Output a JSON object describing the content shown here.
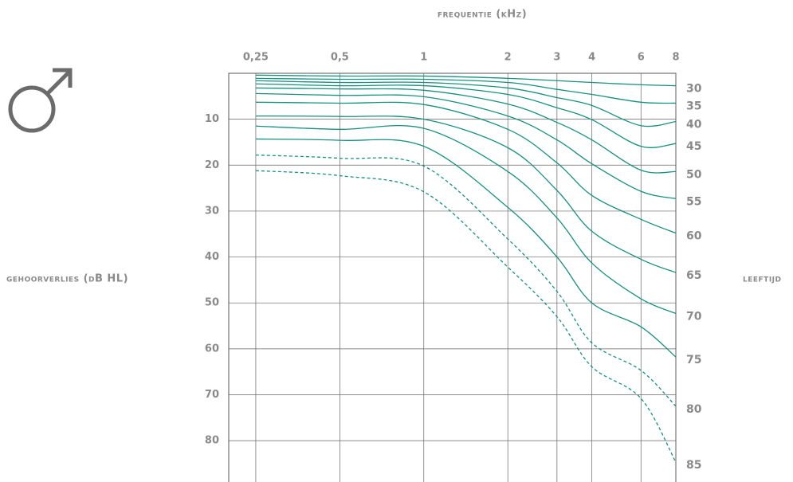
{
  "chart_data": {
    "type": "line",
    "title": "frequentie (kHz)",
    "y_label": "gehoorverlies (dB HL)",
    "series_label": "leeftijd",
    "x_scale": "log",
    "y_inverted": true,
    "grid": true,
    "x": [
      0.25,
      0.5,
      1,
      2,
      3,
      4,
      6,
      8
    ],
    "xlim": [
      0.2,
      8
    ],
    "xticks": [
      {
        "value": 0.25,
        "label": "0,25"
      },
      {
        "value": 0.5,
        "label": "0,5"
      },
      1,
      2,
      3,
      4,
      6,
      8
    ],
    "ylim": [
      0,
      89
    ],
    "yticks": [
      10,
      20,
      30,
      40,
      50,
      60,
      70,
      80
    ],
    "series": [
      {
        "name": "30",
        "color": "#16917f",
        "dashed": false,
        "values": [
          0.4,
          0.6,
          0.6,
          1.1,
          1.6,
          2,
          2.5,
          2.7
        ]
      },
      {
        "name": "35",
        "color": "#16917f",
        "dashed": false,
        "values": [
          1.1,
          1.3,
          1.3,
          2,
          3.5,
          4.6,
          6.3,
          6.5
        ]
      },
      {
        "name": "40",
        "color": "#16917f",
        "dashed": false,
        "values": [
          1.6,
          2,
          2,
          3.2,
          5.3,
          7,
          11.4,
          10.5
        ]
      },
      {
        "name": "45",
        "color": "#16917f",
        "dashed": false,
        "values": [
          2.3,
          2.7,
          2.7,
          4.6,
          7.5,
          10.1,
          15.9,
          15.3
        ]
      },
      {
        "name": "50",
        "color": "#16917f",
        "dashed": false,
        "values": [
          3.2,
          3.4,
          3.7,
          6.7,
          10.7,
          14.5,
          21.1,
          21.4
        ]
      },
      {
        "name": "55",
        "color": "#16917f",
        "dashed": false,
        "values": [
          4.4,
          4.8,
          5.1,
          9.3,
          14.5,
          19.7,
          25.7,
          27.3
        ]
      },
      {
        "name": "60",
        "color": "#16917f",
        "dashed": false,
        "values": [
          6.3,
          6.5,
          6.8,
          12.2,
          19.5,
          26.6,
          31.8,
          34.8
        ]
      },
      {
        "name": "65",
        "color": "#16917f",
        "dashed": false,
        "values": [
          9.3,
          9.4,
          10,
          16.2,
          25.5,
          34.4,
          40.5,
          43.4
        ]
      },
      {
        "name": "70",
        "color": "#16917f",
        "dashed": false,
        "values": [
          11.5,
          12.2,
          12,
          21.4,
          31.5,
          41.3,
          49.1,
          52.3
        ]
      },
      {
        "name": "75",
        "color": "#16917f",
        "dashed": false,
        "values": [
          14.3,
          14.6,
          15.9,
          29.2,
          40,
          50,
          55.2,
          61.8
        ]
      },
      {
        "name": "80",
        "color": "#16917f",
        "dashed": true,
        "values": [
          17.8,
          18.5,
          20.2,
          36.1,
          47.5,
          58.7,
          64.7,
          72.5
        ]
      },
      {
        "name": "85",
        "color": "#16917f",
        "dashed": true,
        "values": [
          21.2,
          22.3,
          25.8,
          42.2,
          53,
          63.9,
          70.8,
          84.7
        ]
      }
    ]
  }
}
